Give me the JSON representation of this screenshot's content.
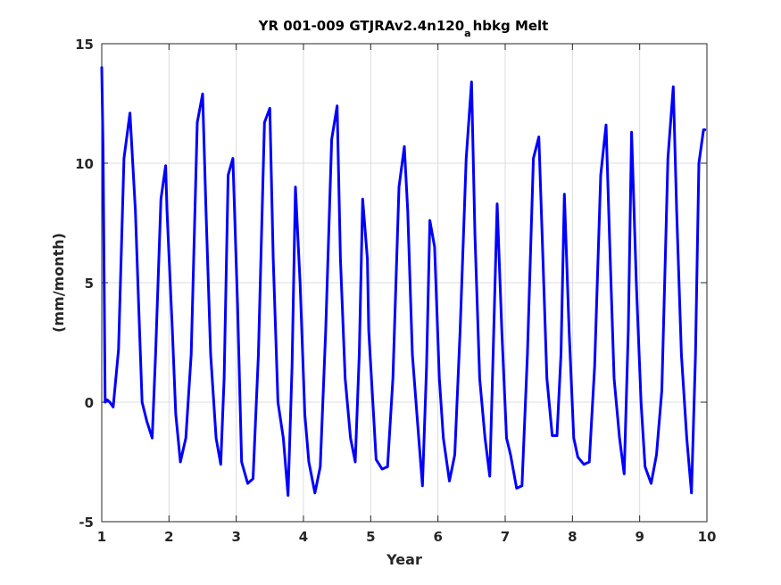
{
  "chart_data": {
    "type": "line",
    "title": {
      "prefix": "YR 001-009 GTJRAv2.4n120",
      "subscript": "a",
      "suffix": "hbkg Melt"
    },
    "xlabel": "Year",
    "ylabel": "(mm/month)",
    "xlim": [
      1,
      10
    ],
    "ylim": [
      -5,
      15
    ],
    "xticks": [
      1,
      2,
      3,
      4,
      5,
      6,
      7,
      8,
      9,
      10
    ],
    "yticks": [
      -5,
      0,
      5,
      10,
      15
    ],
    "grid": true,
    "line_color": "#0000ff",
    "series": [
      {
        "x": [
          1.0,
          1.02,
          1.05,
          1.08,
          1.12,
          1.17,
          1.25,
          1.33,
          1.42,
          1.5,
          1.55,
          1.6,
          1.67,
          1.75,
          1.8,
          1.88,
          1.95,
          1.97,
          2.05,
          2.1,
          2.17,
          2.25,
          2.33,
          2.42,
          2.5,
          2.55,
          2.62,
          2.7,
          2.77,
          2.82,
          2.88,
          2.95,
          3.02,
          3.08,
          3.17,
          3.25,
          3.33,
          3.42,
          3.5,
          3.55,
          3.62,
          3.7,
          3.77,
          3.83,
          3.88,
          3.95,
          4.02,
          4.08,
          4.17,
          4.25,
          4.33,
          4.42,
          4.5,
          4.55,
          4.62,
          4.7,
          4.77,
          4.83,
          4.88,
          4.95,
          4.97,
          5.08,
          5.17,
          5.25,
          5.33,
          5.42,
          5.5,
          5.55,
          5.62,
          5.7,
          5.77,
          5.83,
          5.88,
          5.95,
          6.02,
          6.08,
          6.17,
          6.25,
          6.33,
          6.42,
          6.5,
          6.55,
          6.62,
          6.7,
          6.77,
          6.83,
          6.88,
          6.95,
          7.02,
          7.08,
          7.17,
          7.25,
          7.33,
          7.42,
          7.5,
          7.55,
          7.62,
          7.7,
          7.77,
          7.83,
          7.88,
          7.95,
          8.02,
          8.08,
          8.17,
          8.25,
          8.33,
          8.42,
          8.5,
          8.55,
          8.62,
          8.7,
          8.77,
          8.83,
          8.88,
          8.95,
          9.02,
          9.08,
          9.17,
          9.25,
          9.33,
          9.42,
          9.5,
          9.55,
          9.62,
          9.7,
          9.77,
          9.83,
          9.88,
          9.95,
          9.97
        ],
        "y": [
          14.0,
          10.5,
          0.0,
          0.1,
          0.0,
          -0.2,
          2.2,
          10.2,
          12.1,
          8.0,
          4.0,
          0.0,
          -0.8,
          -1.5,
          2.0,
          8.5,
          9.9,
          8.0,
          3.0,
          -0.5,
          -2.5,
          -1.5,
          2.0,
          11.7,
          12.9,
          8.0,
          2.0,
          -1.5,
          -2.6,
          1.0,
          9.5,
          10.2,
          4.0,
          -2.5,
          -3.4,
          -3.2,
          2.0,
          11.7,
          12.3,
          6.0,
          0.0,
          -1.5,
          -3.9,
          1.5,
          9.0,
          5.0,
          -0.5,
          -2.5,
          -3.8,
          -2.7,
          3.0,
          11.0,
          12.4,
          6.0,
          1.0,
          -1.5,
          -2.5,
          2.0,
          8.5,
          6.0,
          3.0,
          -2.4,
          -2.8,
          -2.7,
          1.0,
          9.0,
          10.7,
          8.0,
          2.0,
          -1.0,
          -3.5,
          1.5,
          7.6,
          6.5,
          1.0,
          -1.5,
          -3.3,
          -2.2,
          3.0,
          10.2,
          13.4,
          7.0,
          1.0,
          -1.5,
          -3.1,
          3.0,
          8.3,
          3.0,
          -1.5,
          -2.2,
          -3.6,
          -3.5,
          2.0,
          10.2,
          11.1,
          7.0,
          1.0,
          -1.4,
          -1.4,
          2.0,
          8.7,
          3.0,
          -1.5,
          -2.3,
          -2.6,
          -2.5,
          1.5,
          9.5,
          11.6,
          7.0,
          1.0,
          -1.5,
          -3.0,
          3.0,
          11.3,
          5.0,
          0.0,
          -2.7,
          -3.4,
          -2.2,
          0.5,
          10.2,
          13.2,
          8.0,
          2.0,
          -1.5,
          -3.8,
          2.0,
          10.0,
          11.4,
          11.4
        ]
      }
    ]
  }
}
